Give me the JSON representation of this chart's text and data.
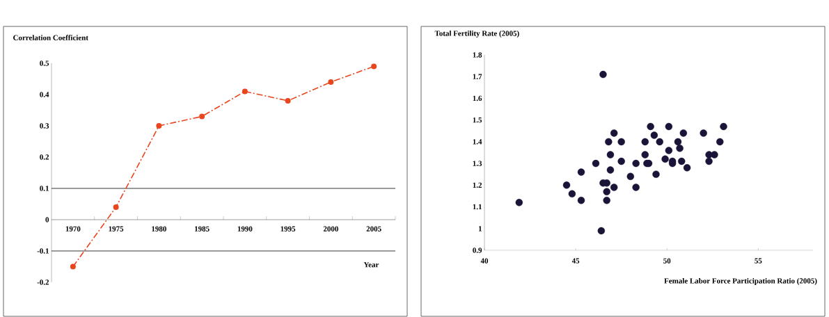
{
  "chart_data": [
    {
      "type": "line",
      "ylabel": "Correlation Coefficient",
      "xlabel": "Year",
      "categories": [
        "1970",
        "1975",
        "1980",
        "1985",
        "1990",
        "1995",
        "2000",
        "2005"
      ],
      "values": [
        -0.15,
        0.04,
        0.3,
        0.33,
        0.41,
        0.38,
        0.44,
        0.49
      ],
      "color": "#e8461e",
      "marker": "circle",
      "line_style": "dashed",
      "ylim": [
        -0.2,
        0.5
      ],
      "yticks": [
        -0.2,
        -0.1,
        0,
        0.1,
        0.2,
        0.3,
        0.4,
        0.5
      ],
      "ref_lines": [
        {
          "axis": "y",
          "value": 0.1
        },
        {
          "axis": "y",
          "value": -0.1
        }
      ]
    },
    {
      "type": "scatter",
      "ylabel": "Total Fertility Rate (2005)",
      "xlabel": "Female Labor Force Participation Ratio (2005)",
      "x": [
        41.9,
        44.5,
        44.8,
        45.3,
        45.3,
        46.1,
        46.5,
        46.4,
        46.5,
        46.7,
        46.7,
        46.7,
        46.8,
        46.9,
        46.9,
        47.1,
        47.1,
        47.5,
        47.5,
        48.0,
        48.3,
        48.3,
        48.8,
        48.8,
        48.9,
        49.0,
        49.1,
        49.3,
        49.4,
        49.6,
        49.9,
        50.1,
        50.1,
        50.3,
        50.3,
        50.6,
        50.7,
        50.8,
        50.9,
        51.1,
        52.0,
        52.3,
        52.3,
        52.6,
        52.9,
        53.1
      ],
      "values": [
        1.12,
        1.2,
        1.16,
        1.26,
        1.13,
        1.3,
        1.71,
        0.99,
        1.21,
        1.21,
        1.17,
        1.13,
        1.4,
        1.34,
        1.27,
        1.44,
        1.19,
        1.4,
        1.31,
        1.24,
        1.19,
        1.3,
        1.4,
        1.34,
        1.3,
        1.3,
        1.47,
        1.43,
        1.25,
        1.4,
        1.32,
        1.36,
        1.47,
        1.31,
        1.3,
        1.4,
        1.37,
        1.31,
        1.44,
        1.28,
        1.44,
        1.34,
        1.31,
        1.34,
        1.4,
        1.47
      ],
      "color": "#1c1438",
      "marker": "circle",
      "xlim": [
        40,
        58
      ],
      "xticks": [
        40,
        45,
        50,
        55
      ],
      "ylim": [
        0.9,
        1.8
      ],
      "yticks": [
        0.9,
        1,
        1.1,
        1.2,
        1.3,
        1.4,
        1.5,
        1.6,
        1.7,
        1.8
      ]
    }
  ]
}
